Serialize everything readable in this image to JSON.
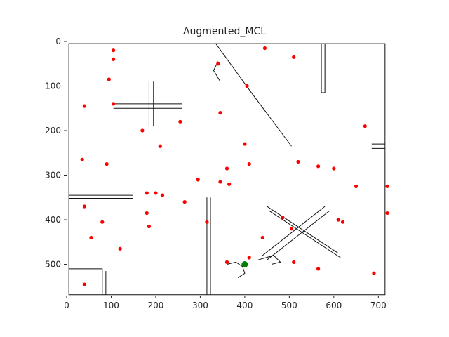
{
  "chart_data": {
    "type": "scatter",
    "title": "Augmented_MCL",
    "xlabel": "",
    "ylabel": "",
    "xlim": [
      0,
      720
    ],
    "ylim": [
      0,
      570
    ],
    "y_inverted": true,
    "grid": false,
    "x_ticks": [
      "0",
      "100",
      "200",
      "300",
      "400",
      "500",
      "600",
      "700"
    ],
    "y_ticks": [
      "0",
      "100",
      "200",
      "300",
      "400",
      "500"
    ],
    "map": {
      "outer_wall": [
        [
          5,
          5
        ],
        [
          715,
          5
        ],
        [
          715,
          568
        ],
        [
          5,
          568
        ]
      ],
      "obstacles": [
        [
          [
            335,
            5
          ],
          [
            415,
            115
          ],
          [
            505,
            235
          ]
        ],
        [
          [
            340,
            45
          ],
          [
            330,
            65
          ],
          [
            345,
            90
          ]
        ],
        [
          [
            572,
            5
          ],
          [
            572,
            115
          ],
          [
            580,
            115
          ],
          [
            580,
            5
          ]
        ],
        [
          [
            105,
            140
          ],
          [
            260,
            140
          ]
        ],
        [
          [
            105,
            150
          ],
          [
            260,
            150
          ]
        ],
        [
          [
            185,
            90
          ],
          [
            185,
            190
          ]
        ],
        [
          [
            195,
            90
          ],
          [
            195,
            190
          ]
        ],
        [
          [
            5,
            345
          ],
          [
            148,
            345
          ]
        ],
        [
          [
            5,
            352
          ],
          [
            148,
            352
          ]
        ],
        [
          [
            5,
            510
          ],
          [
            80,
            510
          ],
          [
            80,
            568
          ]
        ],
        [
          [
            88,
            515
          ],
          [
            88,
            568
          ]
        ],
        [
          [
            315,
            350
          ],
          [
            315,
            568
          ]
        ],
        [
          [
            323,
            350
          ],
          [
            323,
            568
          ]
        ],
        [
          [
            685,
            230
          ],
          [
            715,
            230
          ]
        ],
        [
          [
            685,
            240
          ],
          [
            715,
            240
          ]
        ],
        [
          [
            450,
            370
          ],
          [
            610,
            475
          ]
        ],
        [
          [
            455,
            380
          ],
          [
            615,
            485
          ]
        ],
        [
          [
            440,
            480
          ],
          [
            580,
            370
          ]
        ],
        [
          [
            450,
            490
          ],
          [
            590,
            380
          ]
        ],
        [
          [
            360,
            500
          ],
          [
            380,
            495
          ],
          [
            395,
            505
          ],
          [
            400,
            520
          ],
          [
            385,
            530
          ]
        ],
        [
          [
            430,
            490
          ],
          [
            465,
            480
          ],
          [
            480,
            495
          ],
          [
            460,
            500
          ]
        ]
      ]
    },
    "series": [
      {
        "color": "#ff0000",
        "points": [
          [
            105,
            20
          ],
          [
            105,
            40
          ],
          [
            95,
            85
          ],
          [
            105,
            140
          ],
          [
            40,
            145
          ],
          [
            170,
            200
          ],
          [
            255,
            180
          ],
          [
            210,
            235
          ],
          [
            35,
            265
          ],
          [
            90,
            275
          ],
          [
            180,
            340
          ],
          [
            215,
            345
          ],
          [
            200,
            340
          ],
          [
            180,
            385
          ],
          [
            265,
            360
          ],
          [
            185,
            415
          ],
          [
            40,
            370
          ],
          [
            80,
            405
          ],
          [
            55,
            440
          ],
          [
            120,
            465
          ],
          [
            40,
            545
          ],
          [
            340,
            50
          ],
          [
            445,
            15
          ],
          [
            510,
            35
          ],
          [
            405,
            100
          ],
          [
            345,
            160
          ],
          [
            400,
            230
          ],
          [
            410,
            275
          ],
          [
            360,
            285
          ],
          [
            295,
            310
          ],
          [
            345,
            315
          ],
          [
            365,
            320
          ],
          [
            315,
            405
          ],
          [
            360,
            495
          ],
          [
            410,
            485
          ],
          [
            440,
            440
          ],
          [
            485,
            395
          ],
          [
            505,
            420
          ],
          [
            510,
            495
          ],
          [
            565,
            510
          ],
          [
            520,
            270
          ],
          [
            565,
            280
          ],
          [
            600,
            285
          ],
          [
            670,
            190
          ],
          [
            650,
            325
          ],
          [
            720,
            325
          ],
          [
            720,
            385
          ],
          [
            610,
            400
          ],
          [
            620,
            405
          ],
          [
            690,
            520
          ]
        ]
      },
      {
        "color": "#008000",
        "points": [
          [
            400,
            500
          ]
        ]
      }
    ]
  }
}
